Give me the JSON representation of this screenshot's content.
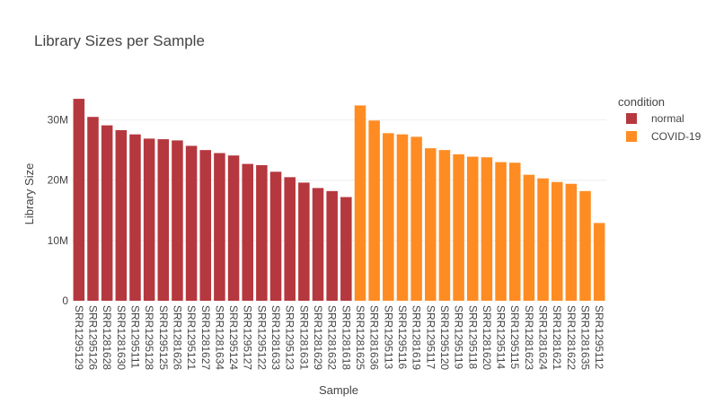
{
  "chart_data": {
    "type": "bar",
    "title": "Library Sizes per Sample",
    "xlabel": "Sample",
    "ylabel": "Library Size",
    "ylim": [
      0,
      35000000
    ],
    "yticks": [
      {
        "value": 0,
        "label": "0"
      },
      {
        "value": 10000000,
        "label": "10M"
      },
      {
        "value": 20000000,
        "label": "20M"
      },
      {
        "value": 30000000,
        "label": "30M"
      }
    ],
    "grid": true,
    "legend": {
      "title": "condition",
      "placement": "right",
      "entries": [
        {
          "name": "normal",
          "color": "#b5383e"
        },
        {
          "name": "COVID-19",
          "color": "#ff8c22"
        }
      ]
    },
    "categories": [
      "SRR1295129",
      "SRR1295126",
      "SRR1281628",
      "SRR1281630",
      "SRR1295111",
      "SRR1295128",
      "SRR1295125",
      "SRR1281626",
      "SRR1295121",
      "SRR1281627",
      "SRR1281634",
      "SRR1295124",
      "SRR1295127",
      "SRR1295122",
      "SRR1281633",
      "SRR1295123",
      "SRR1281631",
      "SRR1281629",
      "SRR1281632",
      "SRR1281618",
      "SRR1281625",
      "SRR1281636",
      "SRR1295113",
      "SRR1295116",
      "SRR1281619",
      "SRR1295117",
      "SRR1295120",
      "SRR1295119",
      "SRR1295118",
      "SRR1281620",
      "SRR1295114",
      "SRR1295115",
      "SRR1281623",
      "SRR1281624",
      "SRR1281621",
      "SRR1281622",
      "SRR1281635",
      "SRR1295112"
    ],
    "series": [
      {
        "name": "normal",
        "color": "#b5383e",
        "values": [
          33500000,
          30500000,
          29100000,
          28300000,
          27600000,
          26900000,
          26800000,
          26600000,
          25700000,
          25000000,
          24500000,
          24100000,
          22700000,
          22500000,
          21400000,
          20500000,
          19600000,
          18700000,
          18200000,
          17200000,
          null,
          null,
          null,
          null,
          null,
          null,
          null,
          null,
          null,
          null,
          null,
          null,
          null,
          null,
          null,
          null,
          null,
          null
        ]
      },
      {
        "name": "COVID-19",
        "color": "#ff8c22",
        "values": [
          null,
          null,
          null,
          null,
          null,
          null,
          null,
          null,
          null,
          null,
          null,
          null,
          null,
          null,
          null,
          null,
          null,
          null,
          null,
          null,
          32400000,
          29900000,
          27800000,
          27600000,
          27200000,
          25300000,
          25000000,
          24300000,
          23900000,
          23800000,
          23000000,
          22900000,
          20900000,
          20300000,
          19700000,
          19400000,
          18200000,
          12900000
        ]
      }
    ]
  }
}
